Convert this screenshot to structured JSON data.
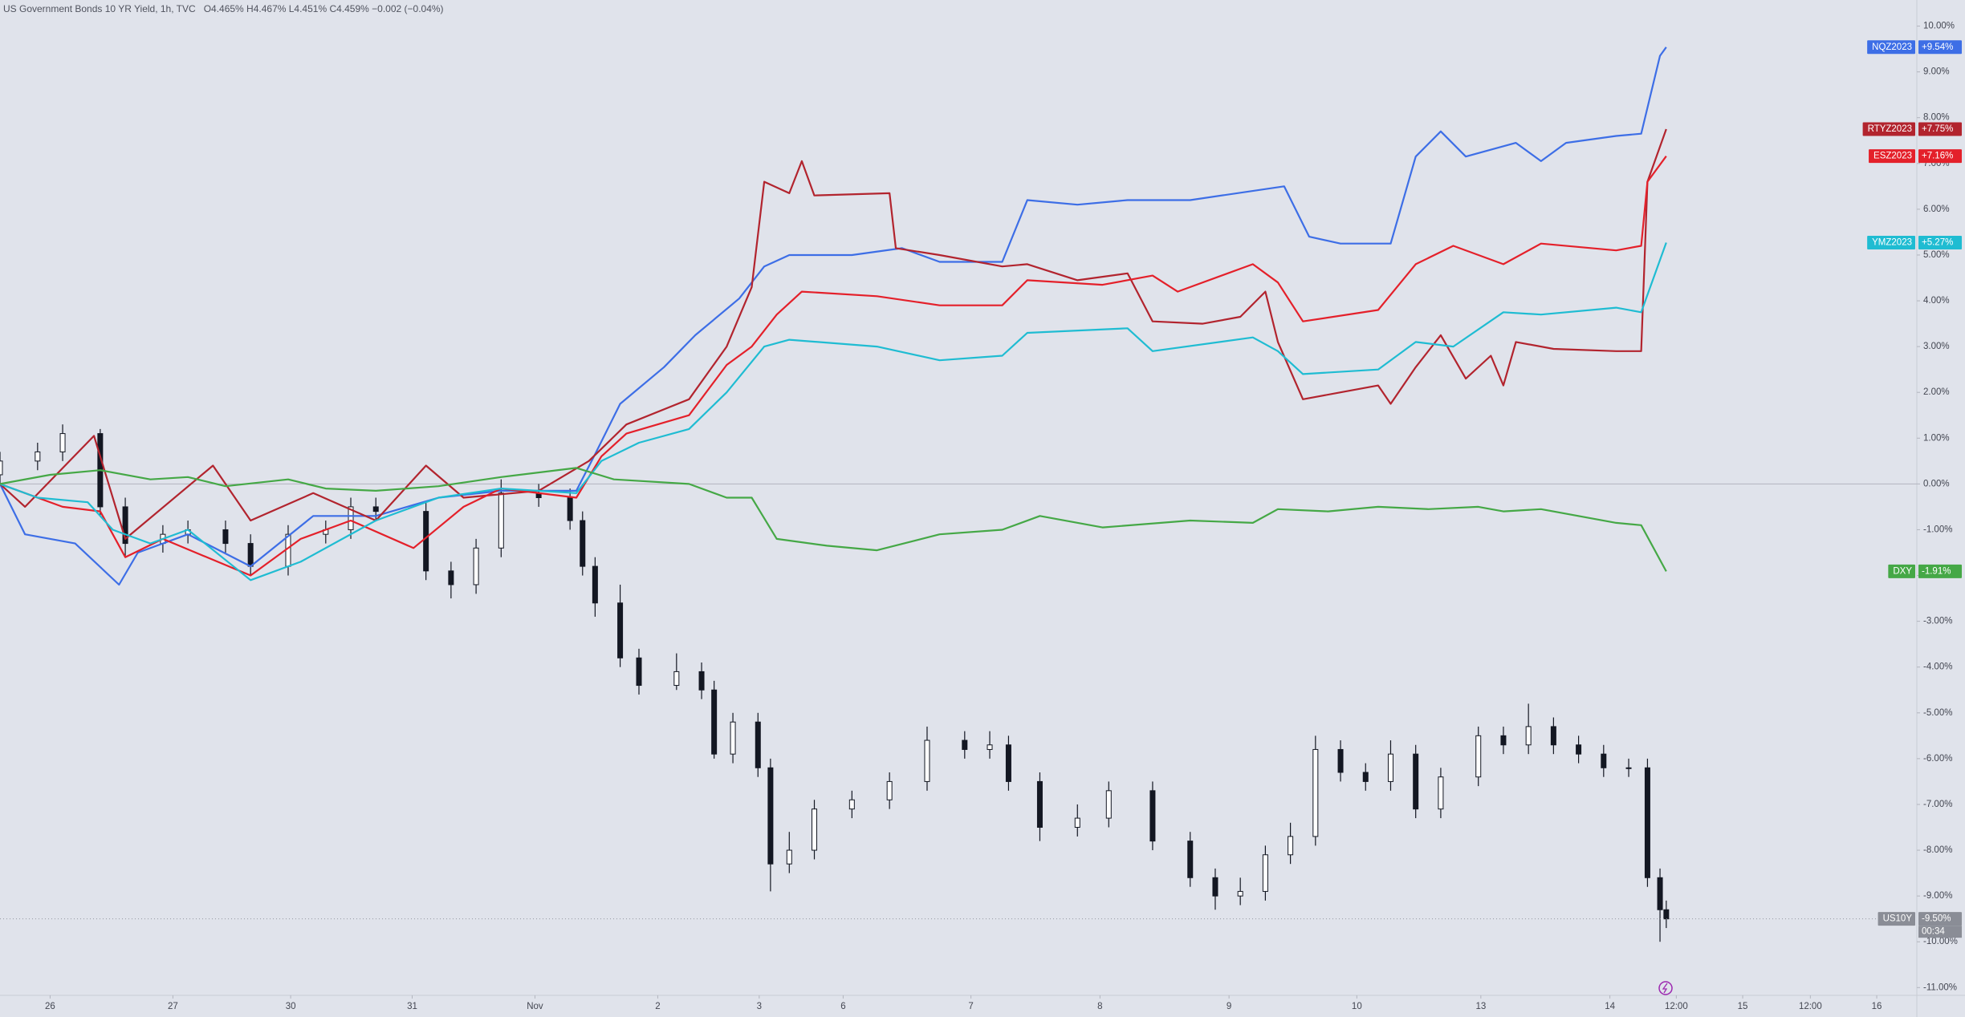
{
  "chart_data": {
    "type": "line",
    "title": "US Government Bonds 10 YR Yield, 1h, TVC",
    "subtitle": "O4.465%  H4.467%  L4.451%  C4.459%  −0.002 (−0.04%)",
    "xlim": [
      0,
      15.3
    ],
    "xticks": [
      {
        "value": 0.4,
        "label": "26"
      },
      {
        "value": 1.38,
        "label": "27"
      },
      {
        "value": 2.32,
        "label": "30"
      },
      {
        "value": 3.29,
        "label": "31"
      },
      {
        "value": 4.27,
        "label": "Nov"
      },
      {
        "value": 5.25,
        "label": "2"
      },
      {
        "value": 6.06,
        "label": "3"
      },
      {
        "value": 6.73,
        "label": "6"
      },
      {
        "value": 7.75,
        "label": "7"
      },
      {
        "value": 8.78,
        "label": "8"
      },
      {
        "value": 9.81,
        "label": "9"
      },
      {
        "value": 10.83,
        "label": "10"
      },
      {
        "value": 11.82,
        "label": "13"
      },
      {
        "value": 12.85,
        "label": "14"
      },
      {
        "value": 13.38,
        "label": "12:00"
      },
      {
        "value": 13.91,
        "label": "15"
      },
      {
        "value": 14.45,
        "label": "12:00"
      },
      {
        "value": 14.98,
        "label": "16"
      }
    ],
    "ylim": [
      -11.17,
      10.57
    ],
    "yticks": [
      {
        "value": -11,
        "label": "-11.00%"
      },
      {
        "value": -10,
        "label": "-10.00%"
      },
      {
        "value": -9,
        "label": "-9.00%"
      },
      {
        "value": -8,
        "label": "-8.00%"
      },
      {
        "value": -7,
        "label": "-7.00%"
      },
      {
        "value": -6,
        "label": "-6.00%"
      },
      {
        "value": -5,
        "label": "-5.00%"
      },
      {
        "value": -4,
        "label": "-4.00%"
      },
      {
        "value": -3,
        "label": "-3.00%"
      },
      {
        "value": -2,
        "label": "-2.00%"
      },
      {
        "value": -1,
        "label": "-1.00%"
      },
      {
        "value": 0,
        "label": "0.00%"
      },
      {
        "value": 1,
        "label": "1.00%"
      },
      {
        "value": 2,
        "label": "2.00%"
      },
      {
        "value": 3,
        "label": "3.00%"
      },
      {
        "value": 4,
        "label": "4.00%"
      },
      {
        "value": 5,
        "label": "5.00%"
      },
      {
        "value": 6,
        "label": "6.00%"
      },
      {
        "value": 7,
        "label": "7.00%"
      },
      {
        "value": 8,
        "label": "8.00%"
      },
      {
        "value": 9,
        "label": "9.00%"
      },
      {
        "value": 10,
        "label": "10.00%"
      }
    ],
    "grid": false,
    "series": [
      {
        "name": "US10Y",
        "type": "candlestick",
        "color": "#131722",
        "up_color": "#ffffff",
        "badge_color": "#8a8d96",
        "last_label": "-9.50%",
        "countdown": "00:34",
        "x": [
          0,
          0.3,
          0.5,
          0.8,
          1.0,
          1.3,
          1.5,
          1.8,
          2.0,
          2.3,
          2.6,
          2.8,
          3.0,
          3.4,
          3.6,
          3.8,
          4.0,
          4.3,
          4.55,
          4.65,
          4.75,
          4.95,
          5.1,
          5.4,
          5.6,
          5.7,
          5.85,
          6.05,
          6.15,
          6.3,
          6.5,
          6.8,
          7.1,
          7.4,
          7.7,
          7.9,
          8.05,
          8.3,
          8.6,
          8.85,
          9.2,
          9.5,
          9.7,
          9.9,
          10.1,
          10.3,
          10.5,
          10.7,
          10.9,
          11.1,
          11.3,
          11.5,
          11.8,
          12.0,
          12.2,
          12.4,
          12.6,
          12.8,
          13.0,
          13.15,
          13.25,
          13.3
        ],
        "open": [
          0.2,
          0.5,
          0.7,
          1.1,
          -0.5,
          -1.3,
          -1.1,
          -1.0,
          -1.3,
          -1.8,
          -1.1,
          -1.0,
          -0.5,
          -0.6,
          -1.9,
          -2.2,
          -1.4,
          -0.2,
          -0.3,
          -0.8,
          -1.8,
          -2.6,
          -3.8,
          -4.4,
          -4.1,
          -4.5,
          -5.9,
          -5.2,
          -6.2,
          -8.3,
          -8.0,
          -7.1,
          -6.9,
          -6.5,
          -5.6,
          -5.8,
          -5.7,
          -6.5,
          -7.5,
          -7.3,
          -6.7,
          -7.8,
          -8.6,
          -9.0,
          -8.9,
          -8.1,
          -7.7,
          -5.8,
          -6.3,
          -6.5,
          -5.9,
          -7.1,
          -6.4,
          -5.5,
          -5.7,
          -5.3,
          -5.7,
          -5.9,
          -6.2,
          -6.2,
          -8.6,
          -9.3
        ],
        "high": [
          0.7,
          0.9,
          1.3,
          1.2,
          -0.3,
          -0.9,
          -0.8,
          -0.8,
          -1.1,
          -0.9,
          -0.8,
          -0.3,
          -0.3,
          -0.4,
          -1.7,
          -1.2,
          0.1,
          0.0,
          -0.1,
          -0.6,
          -1.6,
          -2.2,
          -3.6,
          -3.7,
          -3.9,
          -4.3,
          -5.0,
          -5.0,
          -6.0,
          -7.6,
          -6.9,
          -6.7,
          -6.3,
          -5.3,
          -5.4,
          -5.4,
          -5.5,
          -6.3,
          -7.0,
          -6.5,
          -6.5,
          -7.6,
          -8.4,
          -8.6,
          -7.9,
          -7.4,
          -5.5,
          -5.6,
          -6.1,
          -5.6,
          -5.7,
          -6.2,
          -5.3,
          -5.3,
          -4.8,
          -5.1,
          -5.5,
          -5.7,
          -6.0,
          -6.0,
          -8.4,
          -9.1
        ],
        "low": [
          0.0,
          0.3,
          0.5,
          -0.7,
          -1.6,
          -1.5,
          -1.3,
          -1.5,
          -2.0,
          -2.0,
          -1.3,
          -1.2,
          -0.8,
          -2.1,
          -2.5,
          -2.4,
          -1.6,
          -0.5,
          -1.0,
          -2.0,
          -2.9,
          -4.0,
          -4.6,
          -4.5,
          -4.7,
          -6.0,
          -6.1,
          -6.4,
          -8.9,
          -8.5,
          -8.2,
          -7.3,
          -7.1,
          -6.7,
          -6.0,
          -6.0,
          -6.7,
          -7.8,
          -7.7,
          -7.5,
          -8.0,
          -8.8,
          -9.3,
          -9.2,
          -9.1,
          -8.3,
          -7.9,
          -6.5,
          -6.7,
          -6.7,
          -7.3,
          -7.3,
          -6.6,
          -5.9,
          -5.9,
          -5.9,
          -6.1,
          -6.4,
          -6.4,
          -8.8,
          -10.0,
          -9.7
        ],
        "close": [
          0.5,
          0.7,
          1.1,
          -0.5,
          -1.3,
          -1.1,
          -1.0,
          -1.3,
          -1.8,
          -1.1,
          -1.0,
          -0.5,
          -0.6,
          -1.9,
          -2.2,
          -1.4,
          -0.2,
          -0.3,
          -0.8,
          -1.8,
          -2.6,
          -3.8,
          -4.4,
          -4.1,
          -4.5,
          -5.9,
          -5.2,
          -6.2,
          -8.3,
          -8.0,
          -7.1,
          -6.9,
          -6.5,
          -5.6,
          -5.8,
          -5.7,
          -6.5,
          -7.5,
          -7.3,
          -6.7,
          -7.8,
          -8.6,
          -9.0,
          -8.9,
          -8.1,
          -7.7,
          -5.8,
          -6.3,
          -6.5,
          -5.9,
          -7.1,
          -6.4,
          -5.5,
          -5.7,
          -5.3,
          -5.7,
          -5.9,
          -6.2,
          -6.2,
          -8.6,
          -9.3,
          -9.5
        ]
      },
      {
        "name": "NQZ2023",
        "color": "#3d6ee6",
        "last_label": "+9.54%",
        "x": [
          0,
          0.2,
          0.6,
          0.95,
          1.1,
          1.5,
          2.0,
          2.5,
          3.0,
          3.5,
          4.0,
          4.6,
          4.75,
          4.95,
          5.3,
          5.55,
          5.9,
          6.1,
          6.3,
          6.8,
          7.2,
          7.5,
          8.0,
          8.2,
          8.6,
          9.0,
          9.5,
          10.25,
          10.45,
          10.7,
          11.1,
          11.3,
          11.5,
          11.7,
          12.1,
          12.3,
          12.5,
          12.9,
          13.1,
          13.25,
          13.3
        ],
        "values": [
          0,
          -1.1,
          -1.3,
          -2.2,
          -1.5,
          -1.1,
          -1.8,
          -0.7,
          -0.7,
          -0.3,
          -0.15,
          -0.15,
          0.65,
          1.75,
          2.55,
          3.25,
          4.05,
          4.75,
          5.0,
          5.0,
          5.15,
          4.85,
          4.85,
          6.2,
          6.1,
          6.2,
          6.2,
          6.5,
          5.4,
          5.25,
          5.25,
          7.15,
          7.7,
          7.15,
          7.45,
          7.05,
          7.45,
          7.6,
          7.65,
          9.35,
          9.54
        ]
      },
      {
        "name": "RTYZ2023",
        "color": "#b2242e",
        "last_label": "+7.75%",
        "x": [
          0,
          0.2,
          0.75,
          1.0,
          1.7,
          2.0,
          2.5,
          3.0,
          3.4,
          3.7,
          4.3,
          4.7,
          5.0,
          5.5,
          5.8,
          6.0,
          6.1,
          6.3,
          6.4,
          6.5,
          7.1,
          7.15,
          7.5,
          8.0,
          8.2,
          8.6,
          9.0,
          9.2,
          9.6,
          9.9,
          10.1,
          10.2,
          10.4,
          10.7,
          11.0,
          11.1,
          11.3,
          11.5,
          11.7,
          11.9,
          12.0,
          12.1,
          12.4,
          12.9,
          13.1,
          13.15,
          13.3
        ],
        "values": [
          0,
          -0.5,
          1.05,
          -1.2,
          0.4,
          -0.8,
          -0.2,
          -0.8,
          0.4,
          -0.3,
          -0.15,
          0.5,
          1.3,
          1.85,
          3.0,
          4.3,
          6.6,
          6.35,
          7.05,
          6.3,
          6.35,
          5.15,
          5.0,
          4.75,
          4.8,
          4.45,
          4.6,
          3.55,
          3.5,
          3.65,
          4.2,
          3.1,
          1.85,
          2.0,
          2.15,
          1.75,
          2.55,
          3.25,
          2.3,
          2.8,
          2.15,
          3.1,
          2.95,
          2.9,
          2.9,
          6.6,
          7.75
        ]
      },
      {
        "name": "ESZ2023",
        "color": "#e4202a",
        "last_label": "+7.16%",
        "x": [
          0,
          0.5,
          0.8,
          1.0,
          1.3,
          2.0,
          2.4,
          2.8,
          3.3,
          3.7,
          4.0,
          4.6,
          4.8,
          5.0,
          5.5,
          5.8,
          6.0,
          6.2,
          6.4,
          7.0,
          7.5,
          8.0,
          8.2,
          8.8,
          9.2,
          9.4,
          10.0,
          10.2,
          10.4,
          11.0,
          11.3,
          11.6,
          12.0,
          12.3,
          12.9,
          13.1,
          13.15,
          13.3
        ],
        "values": [
          0,
          -0.5,
          -0.6,
          -1.6,
          -1.2,
          -2.0,
          -1.2,
          -0.8,
          -1.4,
          -0.5,
          -0.1,
          -0.3,
          0.6,
          1.1,
          1.5,
          2.6,
          3.0,
          3.7,
          4.2,
          4.1,
          3.9,
          3.9,
          4.45,
          4.35,
          4.55,
          4.2,
          4.8,
          4.4,
          3.55,
          3.8,
          4.8,
          5.2,
          4.8,
          5.25,
          5.1,
          5.2,
          6.6,
          7.16
        ]
      },
      {
        "name": "YMZ2023",
        "color": "#1fbcd2",
        "last_label": "+5.27%",
        "x": [
          0,
          0.3,
          0.7,
          0.9,
          1.2,
          1.5,
          2.0,
          2.4,
          3.0,
          3.5,
          4.0,
          4.6,
          4.8,
          5.1,
          5.5,
          5.8,
          6.1,
          6.3,
          7.0,
          7.5,
          8.0,
          8.2,
          9.0,
          9.2,
          10.0,
          10.2,
          10.4,
          11.0,
          11.3,
          11.6,
          12.0,
          12.3,
          12.9,
          13.1,
          13.3
        ],
        "values": [
          0,
          -0.3,
          -0.4,
          -1.0,
          -1.3,
          -1.0,
          -2.1,
          -1.7,
          -0.8,
          -0.3,
          -0.1,
          -0.2,
          0.5,
          0.9,
          1.2,
          2.0,
          3.0,
          3.15,
          3.0,
          2.7,
          2.8,
          3.3,
          3.4,
          2.9,
          3.2,
          2.9,
          2.4,
          2.5,
          3.1,
          3.0,
          3.75,
          3.7,
          3.85,
          3.75,
          5.27
        ]
      },
      {
        "name": "DXY",
        "color": "#45a846",
        "last_label": "-1.91%",
        "x": [
          0,
          0.4,
          0.8,
          1.2,
          1.5,
          1.8,
          2.3,
          2.6,
          3.0,
          3.5,
          4.0,
          4.6,
          4.9,
          5.5,
          5.8,
          6.0,
          6.2,
          6.6,
          7.0,
          7.5,
          8.0,
          8.3,
          8.8,
          9.5,
          10.0,
          10.2,
          10.6,
          11.0,
          11.4,
          11.8,
          12.0,
          12.3,
          12.9,
          13.1,
          13.3
        ],
        "values": [
          0,
          0.2,
          0.3,
          0.1,
          0.15,
          -0.05,
          0.1,
          -0.1,
          -0.15,
          -0.05,
          0.15,
          0.35,
          0.1,
          0.0,
          -0.3,
          -0.3,
          -1.2,
          -1.35,
          -1.45,
          -1.1,
          -1.0,
          -0.7,
          -0.95,
          -0.8,
          -0.85,
          -0.55,
          -0.6,
          -0.5,
          -0.55,
          -0.5,
          -0.6,
          -0.55,
          -0.85,
          -0.9,
          -1.91
        ]
      }
    ]
  }
}
